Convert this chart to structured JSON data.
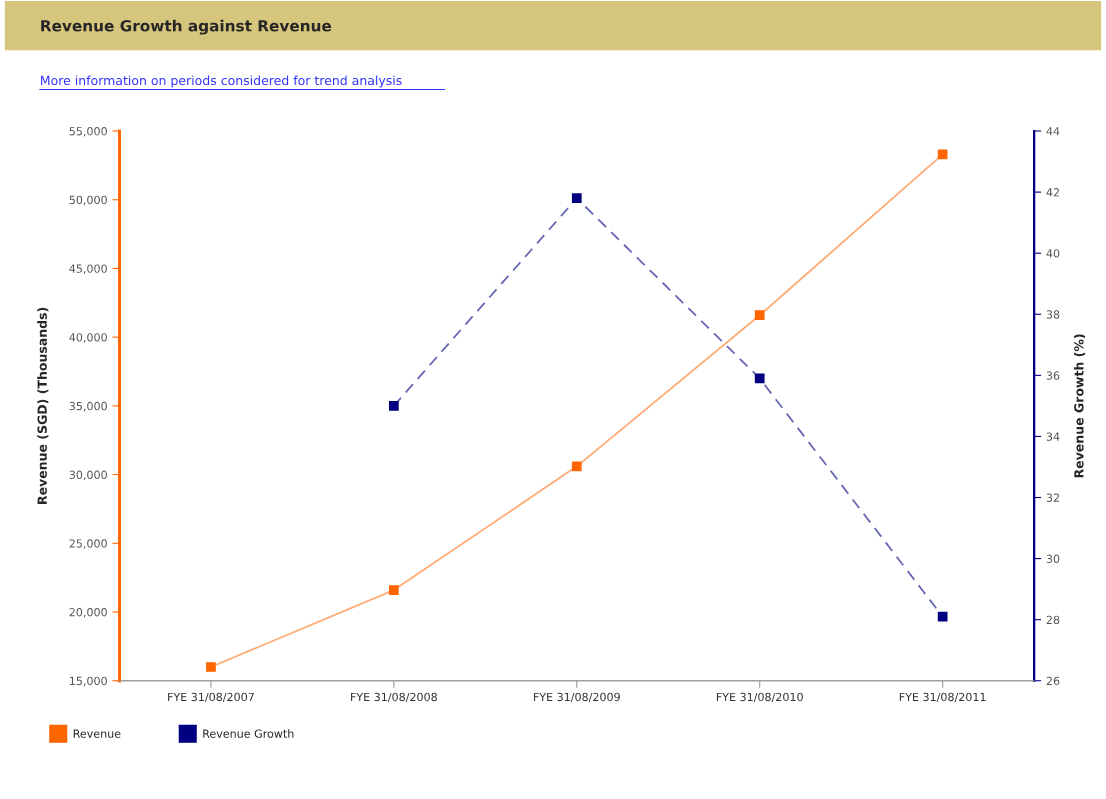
{
  "chart_data": {
    "type": "line",
    "title": "Revenue Growth against Revenue",
    "subtitle": "More information on periods considered for trend analysis",
    "ylabel": "Revenue (SGD) (Thousands)",
    "y2label": "Revenue Growth (%)",
    "categories": [
      "FYE 31/08/2007",
      "FYE 31/08/2008",
      "FYE 31/08/2009",
      "FYE 31/08/2010",
      "FYE 31/08/2011"
    ],
    "series": [
      {
        "name": "Revenue",
        "color": "#ff6600",
        "values": [
          16000,
          21600,
          30600,
          41600,
          53300
        ],
        "line_style": "solid"
      },
      {
        "name": "Revenue Growth",
        "color": "#000080",
        "values": [
          null,
          35.0,
          41.8,
          35.9,
          28.1
        ],
        "axis": "y2",
        "line_style": "dashed"
      }
    ],
    "ylim": [
      15000,
      55000
    ],
    "yticks": [
      {
        "value": 15000,
        "label": "15,000"
      },
      {
        "value": 20000,
        "label": "20,000"
      },
      {
        "value": 25000,
        "label": "25,000"
      },
      {
        "value": 30000,
        "label": "30,000"
      },
      {
        "value": 35000,
        "label": "35,000"
      },
      {
        "value": 40000,
        "label": "40,000"
      },
      {
        "value": 45000,
        "label": "45,000"
      },
      {
        "value": 50000,
        "label": "50,000"
      },
      {
        "value": 55000,
        "label": "55,000"
      }
    ],
    "y2lim": [
      26,
      44
    ],
    "y2ticks": [
      26,
      28,
      30,
      32,
      34,
      36,
      38,
      40,
      42,
      44
    ],
    "marker": "square",
    "grid": false,
    "legend": "bottom left"
  }
}
